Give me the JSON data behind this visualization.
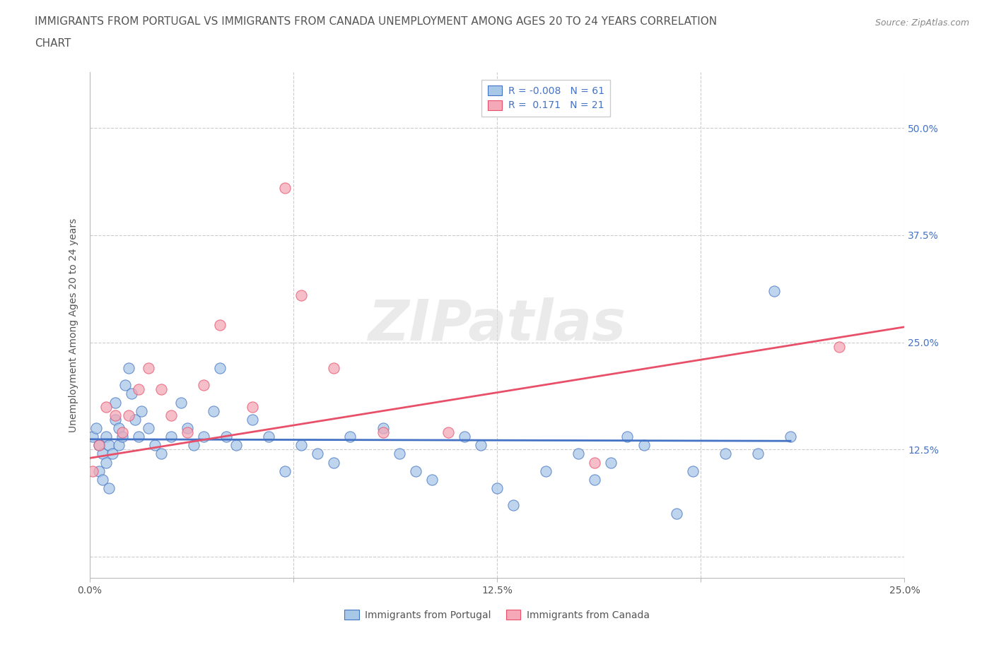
{
  "title_line1": "IMMIGRANTS FROM PORTUGAL VS IMMIGRANTS FROM CANADA UNEMPLOYMENT AMONG AGES 20 TO 24 YEARS CORRELATION",
  "title_line2": "CHART",
  "source_text": "Source: ZipAtlas.com",
  "ylabel": "Unemployment Among Ages 20 to 24 years",
  "legend_label1": "Immigrants from Portugal",
  "legend_label2": "Immigrants from Canada",
  "color_portugal": "#a8c8e8",
  "color_canada": "#f4a8b8",
  "line_color_portugal": "#4472C4",
  "line_color_canada": "#E8506A",
  "legend_text_color": "#4472C4",
  "xlim": [
    0.0,
    0.25
  ],
  "ylim": [
    -0.025,
    0.565
  ],
  "xticks": [
    0.0,
    0.0625,
    0.125,
    0.1875,
    0.25
  ],
  "xtick_labels": [
    "0.0%",
    "",
    "12.5%",
    "",
    "25.0%"
  ],
  "ytick_labels_right": [
    "12.5%",
    "25.0%",
    "37.5%",
    "50.0%"
  ],
  "ytick_vals": [
    0.0,
    0.125,
    0.25,
    0.375,
    0.5
  ],
  "portugal_x": [
    0.001,
    0.002,
    0.003,
    0.003,
    0.004,
    0.004,
    0.005,
    0.005,
    0.006,
    0.006,
    0.007,
    0.008,
    0.008,
    0.009,
    0.009,
    0.01,
    0.011,
    0.012,
    0.013,
    0.014,
    0.015,
    0.016,
    0.018,
    0.02,
    0.022,
    0.025,
    0.028,
    0.03,
    0.032,
    0.035,
    0.038,
    0.04,
    0.042,
    0.045,
    0.05,
    0.055,
    0.06,
    0.065,
    0.07,
    0.075,
    0.08,
    0.09,
    0.095,
    0.1,
    0.105,
    0.115,
    0.12,
    0.125,
    0.13,
    0.14,
    0.15,
    0.155,
    0.16,
    0.165,
    0.17,
    0.18,
    0.185,
    0.195,
    0.205,
    0.21,
    0.215
  ],
  "portugal_y": [
    0.14,
    0.15,
    0.13,
    0.1,
    0.12,
    0.09,
    0.11,
    0.14,
    0.13,
    0.08,
    0.12,
    0.16,
    0.18,
    0.15,
    0.13,
    0.14,
    0.2,
    0.22,
    0.19,
    0.16,
    0.14,
    0.17,
    0.15,
    0.13,
    0.12,
    0.14,
    0.18,
    0.15,
    0.13,
    0.14,
    0.17,
    0.22,
    0.14,
    0.13,
    0.16,
    0.14,
    0.1,
    0.13,
    0.12,
    0.11,
    0.14,
    0.15,
    0.12,
    0.1,
    0.09,
    0.14,
    0.13,
    0.08,
    0.06,
    0.1,
    0.12,
    0.09,
    0.11,
    0.14,
    0.13,
    0.05,
    0.1,
    0.12,
    0.12,
    0.31,
    0.14
  ],
  "canada_x": [
    0.001,
    0.003,
    0.005,
    0.008,
    0.01,
    0.012,
    0.015,
    0.018,
    0.022,
    0.025,
    0.03,
    0.035,
    0.04,
    0.05,
    0.06,
    0.065,
    0.075,
    0.09,
    0.11,
    0.155,
    0.23
  ],
  "canada_y": [
    0.1,
    0.13,
    0.175,
    0.165,
    0.145,
    0.165,
    0.195,
    0.22,
    0.195,
    0.165,
    0.145,
    0.2,
    0.27,
    0.175,
    0.43,
    0.305,
    0.22,
    0.145,
    0.145,
    0.11,
    0.245
  ],
  "portugal_trend_x": [
    0.0,
    0.215
  ],
  "portugal_trend_y": [
    0.137,
    0.135
  ],
  "canada_trend_x": [
    0.0,
    0.25
  ],
  "canada_trend_y": [
    0.115,
    0.268
  ],
  "watermark": "ZIPatlas",
  "background_color": "#ffffff",
  "grid_color": "#cccccc",
  "title_color": "#555555",
  "axis_label_color": "#555555",
  "tick_label_color": "#555555"
}
